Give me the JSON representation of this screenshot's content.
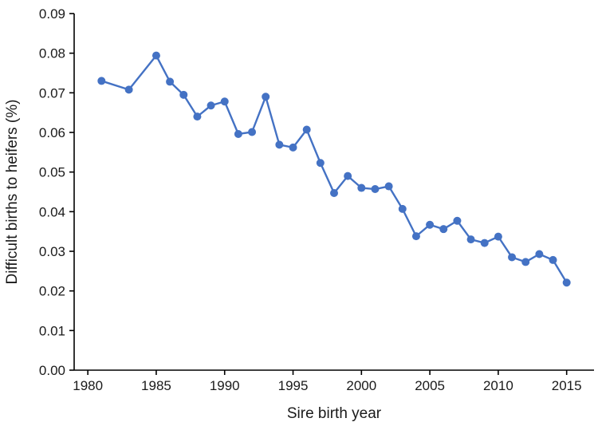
{
  "chart_data": {
    "type": "line",
    "title": "",
    "xlabel": "Sire birth year",
    "ylabel": "Difficult births to heifers (%)",
    "xlim": [
      1979,
      2017
    ],
    "ylim": [
      0,
      0.09
    ],
    "x_ticks": [
      1980,
      1985,
      1990,
      1995,
      2000,
      2005,
      2010,
      2015
    ],
    "x_tick_labels": [
      "1980",
      "1985",
      "1990",
      "1995",
      "2000",
      "2005",
      "2010",
      "2015"
    ],
    "y_ticks": [
      0,
      0.01,
      0.02,
      0.03,
      0.04,
      0.05,
      0.06,
      0.07,
      0.08,
      0.09
    ],
    "y_tick_labels": [
      "0.00",
      "0.01",
      "0.02",
      "0.03",
      "0.04",
      "0.05",
      "0.06",
      "0.07",
      "0.08",
      "0.09"
    ],
    "grid": false,
    "legend": "none",
    "color": "#4472c4",
    "series": [
      {
        "x": [
          1981,
          1983,
          1985,
          1986,
          1987,
          1988,
          1989,
          1990,
          1991,
          1992,
          1993,
          1994,
          1995,
          1996,
          1997,
          1998,
          1999,
          2000,
          2001,
          2002,
          2003,
          2004,
          2005,
          2006,
          2007,
          2008,
          2009,
          2010,
          2011,
          2012,
          2013,
          2014,
          2015
        ],
        "y": [
          0.073,
          0.0708,
          0.0794,
          0.0728,
          0.0695,
          0.064,
          0.0668,
          0.0678,
          0.0596,
          0.0601,
          0.069,
          0.0569,
          0.0562,
          0.0607,
          0.0523,
          0.0447,
          0.049,
          0.046,
          0.0457,
          0.0464,
          0.0407,
          0.0338,
          0.0367,
          0.0356,
          0.0377,
          0.033,
          0.0321,
          0.0337,
          0.0285,
          0.0273,
          0.0293,
          0.0278,
          0.0221
        ]
      }
    ]
  }
}
